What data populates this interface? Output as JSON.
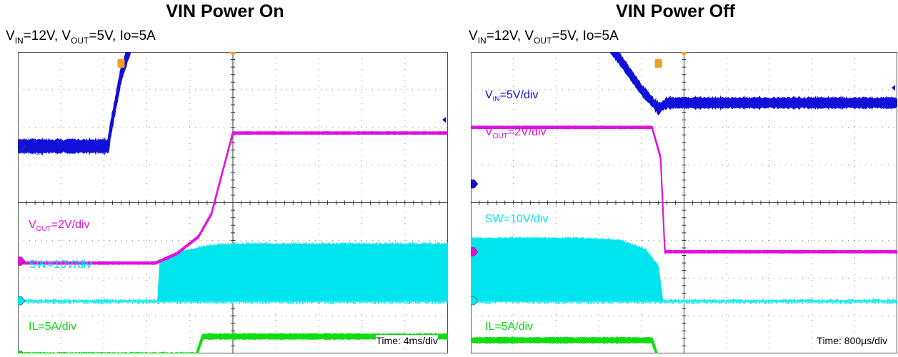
{
  "colors": {
    "vin": "#1010d8",
    "vout": "#e010e0",
    "sw": "#00e4ee",
    "il": "#10dd10",
    "trigger": "#f0a020",
    "grid": "#888888"
  },
  "chart_data": [
    {
      "type": "line",
      "title": "VIN Power On",
      "subtitle": {
        "v_in": "V",
        "v_in_sub": "IN",
        "vin_val": "=12V, ",
        "v_out": "V",
        "v_out_sub": "OUT",
        "vout_val": "=5V, Io=5A"
      },
      "time_label": "Time: 4ms/div",
      "x_unit": "div",
      "x_range": [
        -5,
        5
      ],
      "grid": true,
      "series": [
        {
          "key": "vin",
          "label_main": "V",
          "label_sub": "IN",
          "label_rest": "=5V/div",
          "x": [
            -5,
            -2.9,
            -2.85,
            -2.6,
            -2.2,
            -1.8,
            -1.4,
            -1.0,
            -0.6,
            -0.2,
            0.2,
            5
          ],
          "y": [
            1.5,
            1.5,
            1.9,
            3.4,
            4.8,
            5.5,
            5.9,
            6.1,
            6.2,
            6.3,
            6.3,
            6.3
          ],
          "noise": 0.18
        },
        {
          "key": "vout",
          "label_main": "V",
          "label_sub": "OUT",
          "label_rest": "=2V/div",
          "x": [
            -5,
            -1.8,
            -1.3,
            -0.8,
            -0.5,
            -0.2,
            0.0,
            5
          ],
          "y": [
            -1.6,
            -1.6,
            -1.35,
            -0.9,
            -0.3,
            1.0,
            1.85,
            1.85
          ],
          "noise": 0.03
        },
        {
          "key": "sw",
          "label_main": "SW=10V/div",
          "label_sub": "",
          "label_rest": "",
          "x": [
            -5,
            -1.75,
            -1.7,
            -1.2,
            -0.6,
            0.0,
            5
          ],
          "y": [
            -2.6,
            -2.6,
            -1.6,
            -1.3,
            -1.15,
            -1.1,
            -1.1
          ],
          "baseline": -2.6,
          "noise": 0.05
        },
        {
          "key": "il",
          "label_main": "IL=5A/div",
          "label_sub": "",
          "label_rest": "",
          "x": [
            -5,
            -0.85,
            -0.7,
            5
          ],
          "y": [
            -4.05,
            -4.05,
            -3.55,
            -3.55
          ],
          "noise": 0.07
        }
      ],
      "markers": {
        "ch1_level": 1.5,
        "ch3_level": -1.55,
        "ch2_level": -2.6,
        "ch4_level": -4.05,
        "ref_level": 2.2,
        "trigger_x": -2.6
      }
    },
    {
      "type": "line",
      "title": "VIN Power Off",
      "subtitle": {
        "v_in": "V",
        "v_in_sub": "IN",
        "vin_val": "=12V, ",
        "v_out": "V",
        "v_out_sub": "OUT",
        "vout_val": "=5V, Io=5A"
      },
      "time_label": "Time: 800µs/div",
      "x_unit": "div",
      "x_range": [
        -5,
        5
      ],
      "grid": true,
      "series": [
        {
          "key": "vin",
          "label_main": "V",
          "label_sub": "IN",
          "label_rest": "=5V/div",
          "x": [
            -5,
            -2.6,
            -2.0,
            -1.5,
            -1.0,
            -0.6,
            -0.4,
            5
          ],
          "y": [
            4.8,
            4.75,
            4.5,
            3.8,
            3.0,
            2.5,
            2.65,
            2.65
          ],
          "noise": 0.14
        },
        {
          "key": "vout",
          "label_main": "V",
          "label_sub": "OUT",
          "label_rest": "=2V/div",
          "x": [
            -5,
            -0.75,
            -0.55,
            -0.45,
            5
          ],
          "y": [
            2.0,
            2.0,
            1.2,
            -1.3,
            -1.3
          ],
          "noise": 0.03
        },
        {
          "key": "sw",
          "label_main": "SW=10V/div",
          "label_sub": "",
          "label_rest": "",
          "x": [
            -5,
            -2.5,
            -1.5,
            -0.9,
            -0.6,
            -0.5,
            5
          ],
          "y": [
            -0.95,
            -0.95,
            -1.0,
            -1.25,
            -1.7,
            -2.6,
            -2.6
          ],
          "baseline": -2.6,
          "noise": 0.05
        },
        {
          "key": "il",
          "label_main": "IL=5A/div",
          "label_sub": "",
          "label_rest": "",
          "x": [
            -5,
            -0.75,
            -0.6,
            5
          ],
          "y": [
            -3.65,
            -3.65,
            -4.15,
            -4.15
          ],
          "noise": 0.07
        }
      ],
      "markers": {
        "ch1_level": 0.5,
        "ch3_level": -1.3,
        "ch2_level": -2.6,
        "ch4_level": -4.15,
        "ref_level": 3.05,
        "trigger_x": -0.6
      }
    }
  ]
}
